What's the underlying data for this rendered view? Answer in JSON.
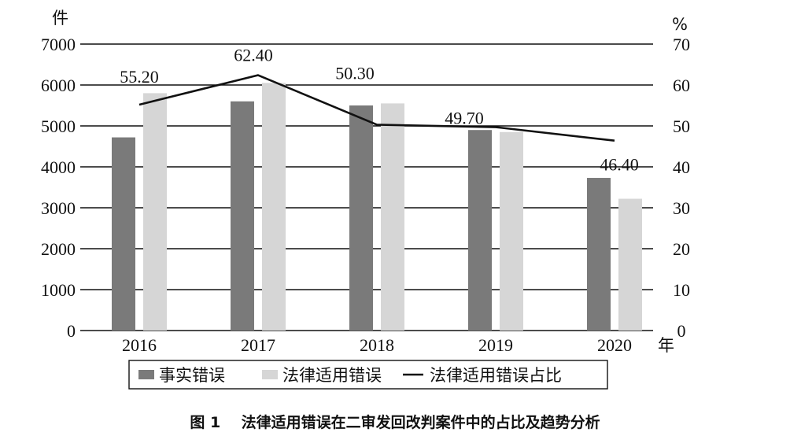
{
  "chart_data": {
    "type": "bar",
    "categories": [
      "2016",
      "2017",
      "2018",
      "2019",
      "2020"
    ],
    "series": [
      {
        "name": "事实错误",
        "kind": "bar",
        "axis": "left",
        "color": "#7a7a7a",
        "values": [
          4720,
          5600,
          5500,
          4900,
          3730
        ]
      },
      {
        "name": "法律适用错误",
        "kind": "bar",
        "axis": "left",
        "color": "#d6d6d6",
        "values": [
          5800,
          6050,
          5550,
          4850,
          3220
        ]
      },
      {
        "name": "法律适用错误占比",
        "kind": "line",
        "axis": "right",
        "color": "#111111",
        "values": [
          55.2,
          62.4,
          50.3,
          49.7,
          46.4
        ],
        "labels": [
          "55.20",
          "62.40",
          "50.30",
          "49.70",
          "46.40"
        ]
      }
    ],
    "left_axis": {
      "unit": "件",
      "ylim": [
        0,
        7000
      ],
      "ticks": [
        "0",
        "1000",
        "2000",
        "3000",
        "4000",
        "5000",
        "6000",
        "7000"
      ]
    },
    "right_axis": {
      "unit": "%",
      "ylim": [
        0,
        70
      ],
      "ticks": [
        "0",
        "10",
        "20",
        "30",
        "40",
        "50",
        "60",
        "70"
      ]
    },
    "x_unit": "年",
    "grid": true,
    "legend_position": "bottom"
  },
  "caption": {
    "label": "图 1",
    "text": "法律适用错误在二审发回改判案件中的占比及趋势分析"
  }
}
